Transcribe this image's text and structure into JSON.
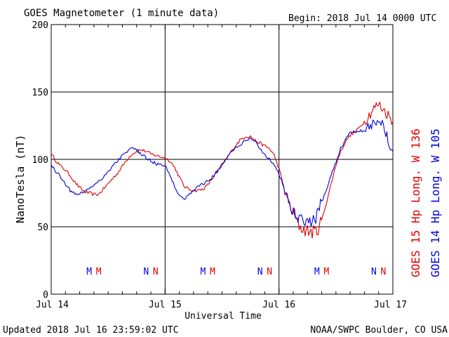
{
  "header": {
    "title": "GOES Magnetometer (1 minute data)",
    "begin": "Begin:  2018 Jul 14 0000 UTC"
  },
  "footer": {
    "updated": "Updated 2018 Jul 16 23:59:02 UTC",
    "credit": "NOAA/SWPC Boulder, CO USA"
  },
  "colors": {
    "goes15": "#dd0000",
    "goes14": "#0000dd",
    "grid": "#000000"
  },
  "chart_data": {
    "type": "line",
    "title": "GOES Magnetometer (1 minute data)",
    "xlabel": "Universal Time",
    "ylabel": "NanoTesla (nT)",
    "xlim": [
      0,
      72
    ],
    "ylim": [
      0,
      200
    ],
    "x_unit": "hours since 2018 Jul 14 0000 UTC",
    "yticks": [
      "0",
      "50",
      "100",
      "150",
      "200"
    ],
    "xticks": [
      {
        "x": 0,
        "label": "Jul 14"
      },
      {
        "x": 24,
        "label": "Jul 15"
      },
      {
        "x": 48,
        "label": "Jul 16"
      },
      {
        "x": 72,
        "label": "Jul 17"
      }
    ],
    "markers": [
      {
        "x": 8.0,
        "label": "M",
        "series": "goes14"
      },
      {
        "x": 10.0,
        "label": "M",
        "series": "goes15"
      },
      {
        "x": 20.0,
        "label": "N",
        "series": "goes14"
      },
      {
        "x": 22.0,
        "label": "N",
        "series": "goes15"
      },
      {
        "x": 32.0,
        "label": "M",
        "series": "goes14"
      },
      {
        "x": 34.0,
        "label": "M",
        "series": "goes15"
      },
      {
        "x": 44.0,
        "label": "N",
        "series": "goes14"
      },
      {
        "x": 46.0,
        "label": "N",
        "series": "goes15"
      },
      {
        "x": 56.0,
        "label": "M",
        "series": "goes14"
      },
      {
        "x": 58.0,
        "label": "M",
        "series": "goes15"
      },
      {
        "x": 68.0,
        "label": "N",
        "series": "goes14"
      },
      {
        "x": 70.0,
        "label": "N",
        "series": "goes15"
      }
    ],
    "series": [
      {
        "id": "goes15",
        "name": "GOES 15 Hp  Long. W 136",
        "color": "#dd0000",
        "x": [
          0,
          1,
          2,
          3,
          4,
          5,
          6,
          7,
          8,
          9,
          10,
          11,
          12,
          13,
          14,
          15,
          16,
          17,
          18,
          19,
          20,
          21,
          22,
          23,
          24,
          25,
          26,
          27,
          28,
          29,
          30,
          31,
          32,
          33,
          34,
          35,
          36,
          37,
          38,
          39,
          40,
          41,
          42,
          43,
          44,
          45,
          46,
          47,
          48,
          49,
          50,
          51,
          52,
          53,
          54,
          55,
          56,
          57,
          58,
          59,
          60,
          61,
          62,
          63,
          64,
          65,
          66,
          67,
          68,
          69,
          70,
          71,
          72
        ],
        "y": [
          104,
          99,
          95,
          92,
          88,
          83,
          79,
          76,
          75,
          74,
          74,
          78,
          82,
          86,
          90,
          95,
          100,
          104,
          106,
          107,
          106,
          104,
          103,
          102,
          101,
          99,
          94,
          87,
          80,
          78,
          77,
          77,
          78,
          81,
          86,
          91,
          96,
          101,
          106,
          111,
          115,
          117,
          117,
          114,
          112,
          110,
          108,
          103,
          93,
          80,
          68,
          60,
          52,
          48,
          47,
          46,
          47,
          55,
          68,
          82,
          96,
          106,
          113,
          118,
          120,
          124,
          128,
          133,
          138,
          141,
          137,
          133,
          128
        ]
      },
      {
        "id": "goes14",
        "name": "GOES 14 Hp  Long. W 105",
        "color": "#0000dd",
        "x": [
          0,
          1,
          2,
          3,
          4,
          5,
          6,
          7,
          8,
          9,
          10,
          11,
          12,
          13,
          14,
          15,
          16,
          17,
          18,
          19,
          20,
          21,
          22,
          23,
          24,
          25,
          26,
          27,
          28,
          29,
          30,
          31,
          32,
          33,
          34,
          35,
          36,
          37,
          38,
          39,
          40,
          41,
          42,
          43,
          44,
          45,
          46,
          47,
          48,
          49,
          50,
          51,
          52,
          53,
          54,
          55,
          56,
          57,
          58,
          59,
          60,
          61,
          62,
          63,
          64,
          65,
          66,
          67,
          68,
          69,
          70,
          71,
          72
        ],
        "y": [
          96,
          91,
          87,
          82,
          77,
          74,
          75,
          76,
          79,
          81,
          84,
          87,
          91,
          95,
          99,
          103,
          106,
          108,
          107,
          104,
          101,
          99,
          97,
          96,
          95,
          89,
          80,
          74,
          71,
          73,
          77,
          80,
          82,
          84,
          87,
          91,
          96,
          101,
          106,
          109,
          111,
          114,
          115,
          113,
          108,
          104,
          100,
          96,
          89,
          80,
          69,
          60,
          56,
          54,
          54,
          53,
          58,
          68,
          78,
          88,
          98,
          108,
          115,
          120,
          121,
          121,
          122,
          124,
          128,
          130,
          125,
          115,
          106
        ]
      }
    ]
  }
}
